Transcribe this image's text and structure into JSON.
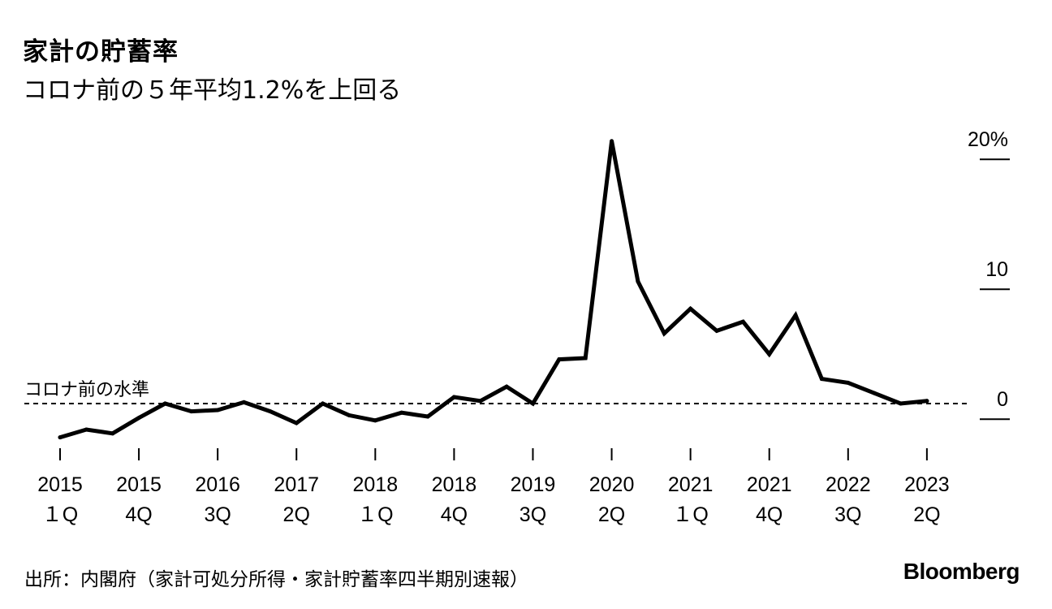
{
  "title": "家計の貯蓄率",
  "subtitle": "コロナ前の５年平均1.2%を上回る",
  "source": "出所：内閣府（家計可処分所得・家計貯蓄率四半期別速報）",
  "brand": "Bloomberg",
  "chart_data": {
    "type": "line",
    "x": [
      "2015 1Q",
      "2015 2Q",
      "2015 3Q",
      "2015 4Q",
      "2016 1Q",
      "2016 2Q",
      "2016 3Q",
      "2016 4Q",
      "2017 1Q",
      "2017 2Q",
      "2017 3Q",
      "2017 4Q",
      "2018 1Q",
      "2018 2Q",
      "2018 3Q",
      "2018 4Q",
      "2019 1Q",
      "2019 2Q",
      "2019 3Q",
      "2019 4Q",
      "2020 1Q",
      "2020 2Q",
      "2020 3Q",
      "2020 4Q",
      "2021 1Q",
      "2021 2Q",
      "2021 3Q",
      "2021 4Q",
      "2022 1Q",
      "2022 2Q",
      "2022 3Q",
      "2022 4Q",
      "2023 1Q",
      "2023 2Q"
    ],
    "series": [
      {
        "values": [
          -1.4,
          -0.8,
          -1.1,
          0.1,
          1.2,
          0.6,
          0.7,
          1.3,
          0.6,
          -0.3,
          1.2,
          0.3,
          -0.1,
          0.5,
          0.2,
          1.7,
          1.4,
          2.5,
          1.2,
          4.6,
          4.7,
          21.4,
          10.6,
          6.6,
          8.5,
          6.8,
          7.5,
          5.0,
          8.0,
          3.1,
          2.8,
          2.0,
          1.2,
          1.4
        ]
      }
    ],
    "ylim": [
      -1.9,
      21.7
    ],
    "y_ticks": [
      {
        "value": 20,
        "label": "20%"
      },
      {
        "value": 10,
        "label": "10"
      },
      {
        "value": 0,
        "label": "0"
      }
    ],
    "x_tick_labels": [
      {
        "index": 0,
        "year": "2015",
        "quarter": "１Q"
      },
      {
        "index": 3,
        "year": "2015",
        "quarter": "4Q"
      },
      {
        "index": 6,
        "year": "2016",
        "quarter": "3Q"
      },
      {
        "index": 9,
        "year": "2017",
        "quarter": "2Q"
      },
      {
        "index": 12,
        "year": "2018",
        "quarter": "１Q"
      },
      {
        "index": 15,
        "year": "2018",
        "quarter": "4Q"
      },
      {
        "index": 18,
        "year": "2019",
        "quarter": "3Q"
      },
      {
        "index": 21,
        "year": "2020",
        "quarter": "2Q"
      },
      {
        "index": 24,
        "year": "2021",
        "quarter": "１Q"
      },
      {
        "index": 27,
        "year": "2021",
        "quarter": "4Q"
      },
      {
        "index": 30,
        "year": "2022",
        "quarter": "3Q"
      },
      {
        "index": 33,
        "year": "2023",
        "quarter": "2Q"
      }
    ],
    "reference_line": {
      "value": 1.2,
      "label": "コロナ前の水準",
      "style": "dashed"
    },
    "grid": false,
    "line_color": "#000000"
  }
}
